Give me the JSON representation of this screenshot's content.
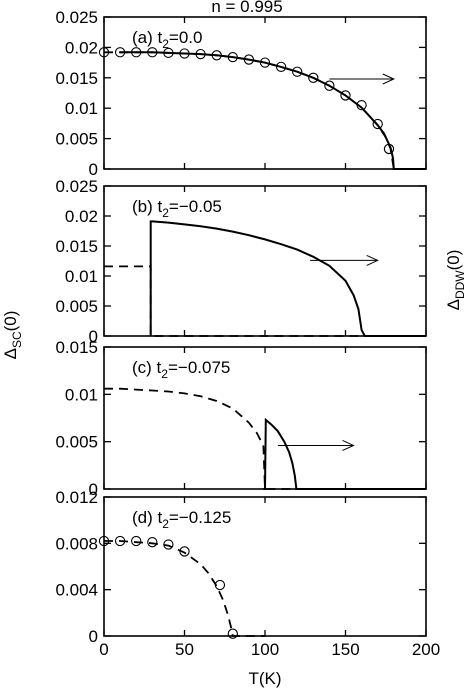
{
  "figure": {
    "title": "n = 0.995",
    "xlabel": "T(K)",
    "ylabel_left_main": "Δ",
    "ylabel_left_sub": "SC",
    "ylabel_left_tail": "(0)",
    "ylabel_right_main": "Δ",
    "ylabel_right_sub": "DDW",
    "ylabel_right_tail": "(0)",
    "x_ticks": [
      "0",
      "50",
      "100",
      "150",
      "200"
    ]
  },
  "chart_data": [
    {
      "type": "line",
      "panel": "a",
      "label_prefix": "(a) t",
      "label_sub": "2",
      "label_value": "=0.0",
      "xlim": [
        0,
        200
      ],
      "ylim": [
        0,
        0.025
      ],
      "yticks": [
        "0.025",
        "0.02",
        "0.015",
        "0.01",
        "0.005",
        "0"
      ],
      "ytick_values": [
        0.025,
        0.02,
        0.015,
        0.01,
        0.005,
        0
      ],
      "arrow": {
        "x_from": 140,
        "x_to": 180,
        "y": 0.0148,
        "points_to": "right axis"
      },
      "series": [
        {
          "style": "dashed",
          "x": [
            0,
            10,
            20,
            30,
            40,
            50,
            60,
            70,
            80,
            90,
            100,
            110,
            120,
            130,
            140,
            150,
            160,
            170,
            175,
            178,
            180
          ],
          "y": [
            0.0192,
            0.0192,
            0.0192,
            0.0192,
            0.0191,
            0.019,
            0.0189,
            0.0187,
            0.0184,
            0.018,
            0.0175,
            0.0168,
            0.016,
            0.015,
            0.0137,
            0.0121,
            0.0101,
            0.0072,
            0.0052,
            0.0033,
            0
          ]
        },
        {
          "style": "solid",
          "x": [
            10,
            20,
            30,
            40,
            50,
            60,
            70,
            80,
            90,
            100,
            110,
            120,
            130,
            140,
            150,
            160,
            170,
            174,
            178,
            179.5,
            180,
            200
          ],
          "y": [
            0.0192,
            0.0192,
            0.0192,
            0.0191,
            0.019,
            0.0189,
            0.0187,
            0.0184,
            0.018,
            0.0175,
            0.0168,
            0.016,
            0.015,
            0.0137,
            0.0121,
            0.0101,
            0.0072,
            0.0058,
            0.0035,
            0.0018,
            0,
            0
          ]
        },
        {
          "style": "markers",
          "marker": "open-circle",
          "x": [
            0,
            10,
            20,
            30,
            40,
            50,
            60,
            70,
            80,
            90,
            100,
            110,
            120,
            130,
            140,
            150,
            160,
            170,
            177
          ],
          "y": [
            0.0192,
            0.0192,
            0.0192,
            0.0192,
            0.0191,
            0.019,
            0.0189,
            0.0187,
            0.0184,
            0.018,
            0.0175,
            0.0168,
            0.016,
            0.015,
            0.0137,
            0.0121,
            0.0105,
            0.0074,
            0.0033
          ]
        }
      ]
    },
    {
      "type": "line",
      "panel": "b",
      "label_prefix": "(b) t",
      "label_sub": "2",
      "label_value": "=−0.05",
      "xlim": [
        0,
        200
      ],
      "ylim": [
        0,
        0.025
      ],
      "yticks": [
        "0.025",
        "0.02",
        "0.015",
        "0.01",
        "0.005",
        "0"
      ],
      "ytick_values": [
        0.025,
        0.02,
        0.015,
        0.01,
        0.005,
        0
      ],
      "arrow": {
        "x_from": 128,
        "x_to": 170,
        "y": 0.0126,
        "points_to": "right axis"
      },
      "series": [
        {
          "style": "dashed",
          "x": [
            0,
            29,
            29,
            160
          ],
          "y": [
            0.0116,
            0.0116,
            0,
            0
          ]
        },
        {
          "style": "solid",
          "x": [
            29,
            29,
            30,
            40,
            50,
            60,
            70,
            80,
            90,
            100,
            110,
            120,
            130,
            140,
            150,
            155,
            158,
            160,
            162,
            200
          ],
          "y": [
            0,
            0.0191,
            0.0191,
            0.0189,
            0.0186,
            0.0183,
            0.0179,
            0.0174,
            0.0168,
            0.0161,
            0.0153,
            0.0144,
            0.0132,
            0.0117,
            0.0092,
            0.0068,
            0.0045,
            0.001,
            0,
            0
          ]
        }
      ]
    },
    {
      "type": "line",
      "panel": "c",
      "label_prefix": "(c) t",
      "label_sub": "2",
      "label_value": "=−0.075",
      "xlim": [
        0,
        200
      ],
      "ylim": [
        0,
        0.015
      ],
      "yticks": [
        "0.015",
        "0.01",
        "0.005",
        "0"
      ],
      "ytick_values": [
        0.015,
        0.01,
        0.005,
        0
      ],
      "arrow": {
        "x_from": 108,
        "x_to": 155,
        "y": 0.0046,
        "points_to": "right axis"
      },
      "series": [
        {
          "style": "dashed",
          "x": [
            0,
            10,
            20,
            30,
            40,
            50,
            60,
            70,
            80,
            90,
            95,
            98,
            99,
            100,
            120
          ],
          "y": [
            0.0106,
            0.0106,
            0.0105,
            0.0104,
            0.0103,
            0.0101,
            0.0098,
            0.0093,
            0.0085,
            0.007,
            0.0059,
            0.0049,
            0.0045,
            0,
            0
          ]
        },
        {
          "style": "solid",
          "x": [
            99,
            100,
            100.5,
            104,
            108,
            112,
            115,
            117,
            118.5,
            119.5,
            200
          ],
          "y": [
            0,
            0,
            0.0073,
            0.0068,
            0.0061,
            0.005,
            0.0039,
            0.0027,
            0.0014,
            0,
            0
          ]
        }
      ]
    },
    {
      "type": "line",
      "panel": "d",
      "label_prefix": "(d) t",
      "label_sub": "2",
      "label_value": "=−0.125",
      "xlim": [
        0,
        200
      ],
      "ylim": [
        0,
        0.012
      ],
      "yticks": [
        "0.012",
        "0.008",
        "0.004",
        "0"
      ],
      "ytick_values": [
        0.012,
        0.008,
        0.004,
        0
      ],
      "series": [
        {
          "style": "dashed",
          "x": [
            0,
            10,
            20,
            30,
            40,
            50,
            60,
            65,
            70,
            74,
            77,
            79,
            80,
            100
          ],
          "y": [
            0.0082,
            0.0082,
            0.0081,
            0.008,
            0.0078,
            0.0072,
            0.0062,
            0.0054,
            0.0043,
            0.0031,
            0.0018,
            0.0007,
            0,
            0
          ]
        },
        {
          "style": "markers",
          "marker": "open-circle",
          "x": [
            0,
            10,
            20,
            30,
            40,
            50,
            72,
            80
          ],
          "y": [
            0.0082,
            0.0082,
            0.0082,
            0.0081,
            0.0079,
            0.0073,
            0.0044,
            0.0002
          ]
        }
      ]
    }
  ]
}
